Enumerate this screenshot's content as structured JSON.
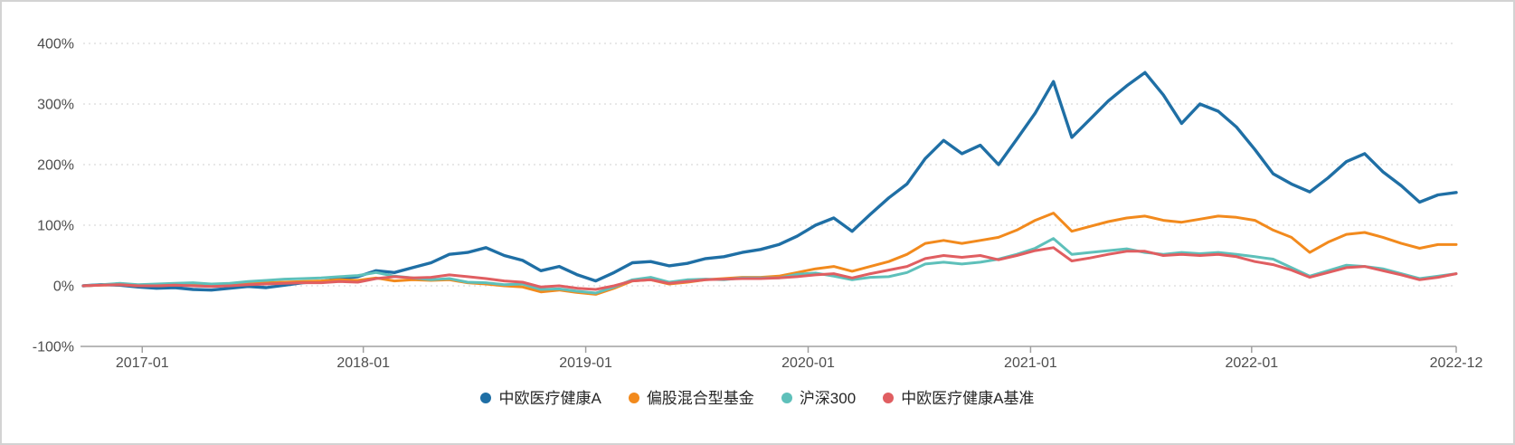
{
  "panel": {
    "background": "#ffffff",
    "border_color": "#d3d3d3"
  },
  "chart_data": {
    "type": "line",
    "title": "",
    "grid": "horizontal-dotted",
    "legend_position": "bottom-center",
    "sampling": "monthly",
    "x_start": "2016-09",
    "x_end": "2022-12",
    "colors": {
      "grid_line": "#e1e1e1",
      "axis_line": "#a0a0a0",
      "tick_text": "#4d4d4d",
      "legend_text": "#262626"
    },
    "y_axis": {
      "min": -100,
      "max": 400,
      "unit": "%",
      "ticks": [
        {
          "value": 400,
          "label": "400%"
        },
        {
          "value": 300,
          "label": "300%"
        },
        {
          "value": 200,
          "label": "200%"
        },
        {
          "value": 100,
          "label": "100%"
        },
        {
          "value": 0,
          "label": "0%"
        },
        {
          "value": -100,
          "label": "-100%"
        }
      ]
    },
    "x_axis": {
      "ticks": [
        {
          "label": "2017-01",
          "pos": 0.043
        },
        {
          "label": "2018-01",
          "pos": 0.204
        },
        {
          "label": "2019-01",
          "pos": 0.366
        },
        {
          "label": "2020-01",
          "pos": 0.528
        },
        {
          "label": "2021-01",
          "pos": 0.69
        },
        {
          "label": "2022-01",
          "pos": 0.851
        },
        {
          "label": "2022-12",
          "pos": 1.0
        }
      ]
    },
    "series": [
      {
        "name": "中欧医疗健康A",
        "color": "#1f6fa5",
        "line_width": 3.4,
        "values": [
          0,
          2,
          1,
          -2,
          -4,
          -3,
          -6,
          -7,
          -4,
          -1,
          -3,
          1,
          5,
          7,
          12,
          15,
          25,
          22,
          30,
          38,
          52,
          55,
          63,
          50,
          42,
          25,
          32,
          18,
          8,
          22,
          38,
          40,
          33,
          37,
          45,
          48,
          55,
          60,
          68,
          82,
          100,
          112,
          90,
          118,
          145,
          168,
          210,
          240,
          218,
          232,
          200,
          242,
          285,
          337,
          245,
          275,
          305,
          330,
          352,
          315,
          268,
          300,
          288,
          262,
          225,
          185,
          168,
          155,
          178,
          205,
          218,
          188,
          165,
          138,
          150,
          154
        ]
      },
      {
        "name": "偏股混合型基金",
        "color": "#f28a1d",
        "line_width": 3.0,
        "values": [
          0,
          1,
          2,
          0,
          0,
          1,
          1,
          0,
          1,
          3,
          5,
          6,
          7,
          8,
          10,
          9,
          13,
          8,
          10,
          9,
          10,
          5,
          3,
          0,
          -2,
          -10,
          -7,
          -11,
          -14,
          -4,
          8,
          10,
          3,
          6,
          10,
          12,
          14,
          14,
          16,
          22,
          28,
          32,
          24,
          32,
          40,
          52,
          70,
          75,
          70,
          75,
          80,
          92,
          108,
          120,
          90,
          98,
          106,
          112,
          115,
          108,
          105,
          110,
          115,
          113,
          108,
          92,
          80,
          55,
          72,
          85,
          88,
          80,
          70,
          62,
          68,
          68
        ]
      },
      {
        "name": "沪深300",
        "color": "#5ec0ba",
        "line_width": 3.0,
        "values": [
          0,
          2,
          4,
          2,
          3,
          4,
          5,
          3,
          4,
          7,
          9,
          11,
          12,
          13,
          15,
          17,
          22,
          16,
          13,
          10,
          12,
          6,
          5,
          2,
          3,
          -6,
          -5,
          -9,
          -12,
          -2,
          10,
          14,
          6,
          10,
          11,
          10,
          13,
          13,
          13,
          19,
          21,
          16,
          10,
          14,
          15,
          22,
          36,
          39,
          36,
          39,
          44,
          52,
          62,
          78,
          52,
          55,
          58,
          61,
          55,
          52,
          55,
          53,
          55,
          52,
          48,
          44,
          30,
          16,
          25,
          34,
          32,
          28,
          20,
          12,
          16,
          20
        ]
      },
      {
        "name": "中欧医疗健康A基准",
        "color": "#e05e61",
        "line_width": 3.0,
        "values": [
          0,
          1,
          2,
          0,
          0,
          1,
          0,
          -1,
          0,
          2,
          3,
          4,
          5,
          5,
          7,
          6,
          12,
          15,
          13,
          14,
          18,
          15,
          12,
          8,
          6,
          -2,
          0,
          -4,
          -6,
          0,
          8,
          10,
          4,
          7,
          10,
          11,
          12,
          12,
          13,
          15,
          18,
          20,
          13,
          20,
          26,
          32,
          45,
          50,
          47,
          50,
          43,
          50,
          58,
          63,
          41,
          46,
          52,
          57,
          57,
          50,
          52,
          50,
          52,
          48,
          40,
          35,
          26,
          14,
          22,
          30,
          32,
          25,
          18,
          10,
          14,
          20
        ]
      }
    ]
  }
}
